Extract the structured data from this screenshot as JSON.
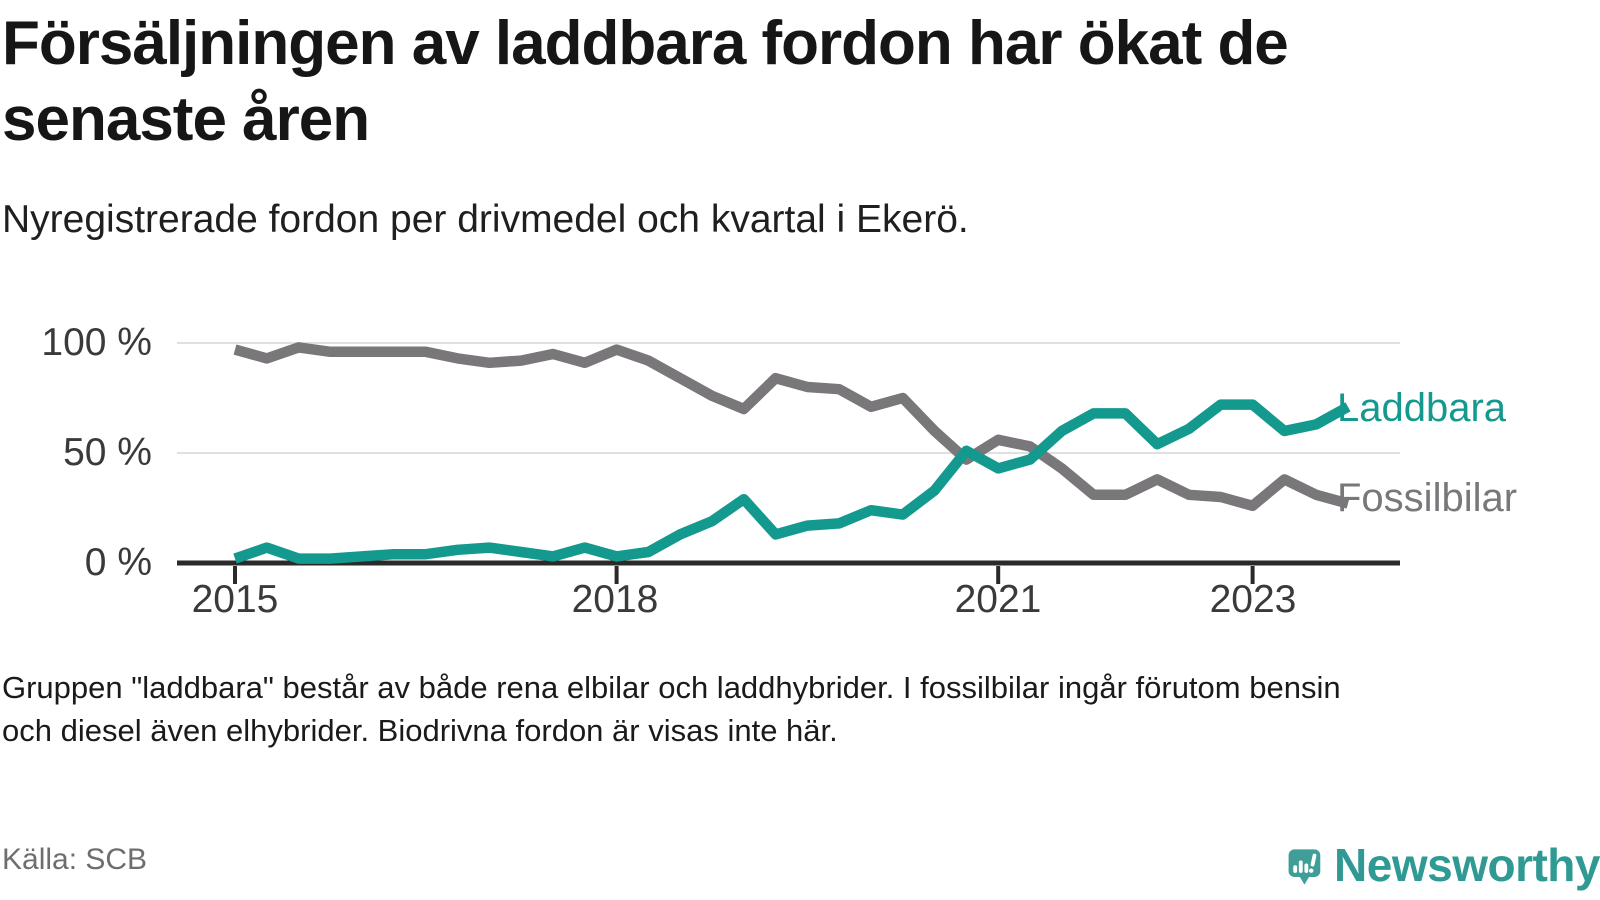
{
  "header": {
    "title_line1": "Försäljningen av laddbara fordon har ökat de",
    "title_line2": "senaste åren",
    "subtitle": "Nyregistrerade fordon per drivmedel och kvartal i Ekerö."
  },
  "chart_data": {
    "type": "line",
    "x_unit": "quarter",
    "x_start_year": 2015,
    "x_step_years": 0.25,
    "xticks": [
      2015,
      2018,
      2021,
      2023
    ],
    "xtick_labels": [
      "2015",
      "2018",
      "2021",
      "2023"
    ],
    "yticks": [
      0,
      50,
      100
    ],
    "ytick_labels": [
      "0 %",
      "50 %",
      "100 %"
    ],
    "ylim": [
      0,
      100
    ],
    "grid": "horizontal-light",
    "legend_position": "line-end-labels",
    "series": [
      {
        "name": "Laddbara",
        "color": "#14998f",
        "values": [
          2,
          7,
          2,
          2,
          3,
          4,
          4,
          6,
          7,
          5,
          3,
          7,
          3,
          5,
          13,
          19,
          29,
          13,
          17,
          18,
          24,
          22,
          33,
          51,
          43,
          47,
          60,
          68,
          68,
          54,
          61,
          72,
          72,
          60,
          63,
          71
        ]
      },
      {
        "name": "Fossilbilar",
        "color": "#7a777b",
        "values": [
          97,
          93,
          98,
          96,
          96,
          96,
          96,
          93,
          91,
          92,
          95,
          91,
          97,
          92,
          84,
          76,
          70,
          84,
          80,
          79,
          71,
          75,
          60,
          47,
          56,
          53,
          43,
          31,
          31,
          38,
          31,
          30,
          26,
          38,
          31,
          27
        ]
      }
    ]
  },
  "footnote": {
    "line1": "Gruppen \"laddbara\" består av både rena elbilar och laddhybrider. I fossilbilar ingår förutom bensin",
    "line2": "och diesel även elhybrider. Biodrivna fordon är visas inte här."
  },
  "source": {
    "label": "Källa: SCB"
  },
  "branding": {
    "wordmark": "Newsworthy"
  },
  "colors": {
    "accent_teal": "#14998f",
    "line_gray": "#7a777b",
    "logo_teal": "#3f9e97",
    "axis": "#2b2a29",
    "grid": "#e0e0e0",
    "text": "#161616",
    "muted_text": "#6e6e6e"
  }
}
